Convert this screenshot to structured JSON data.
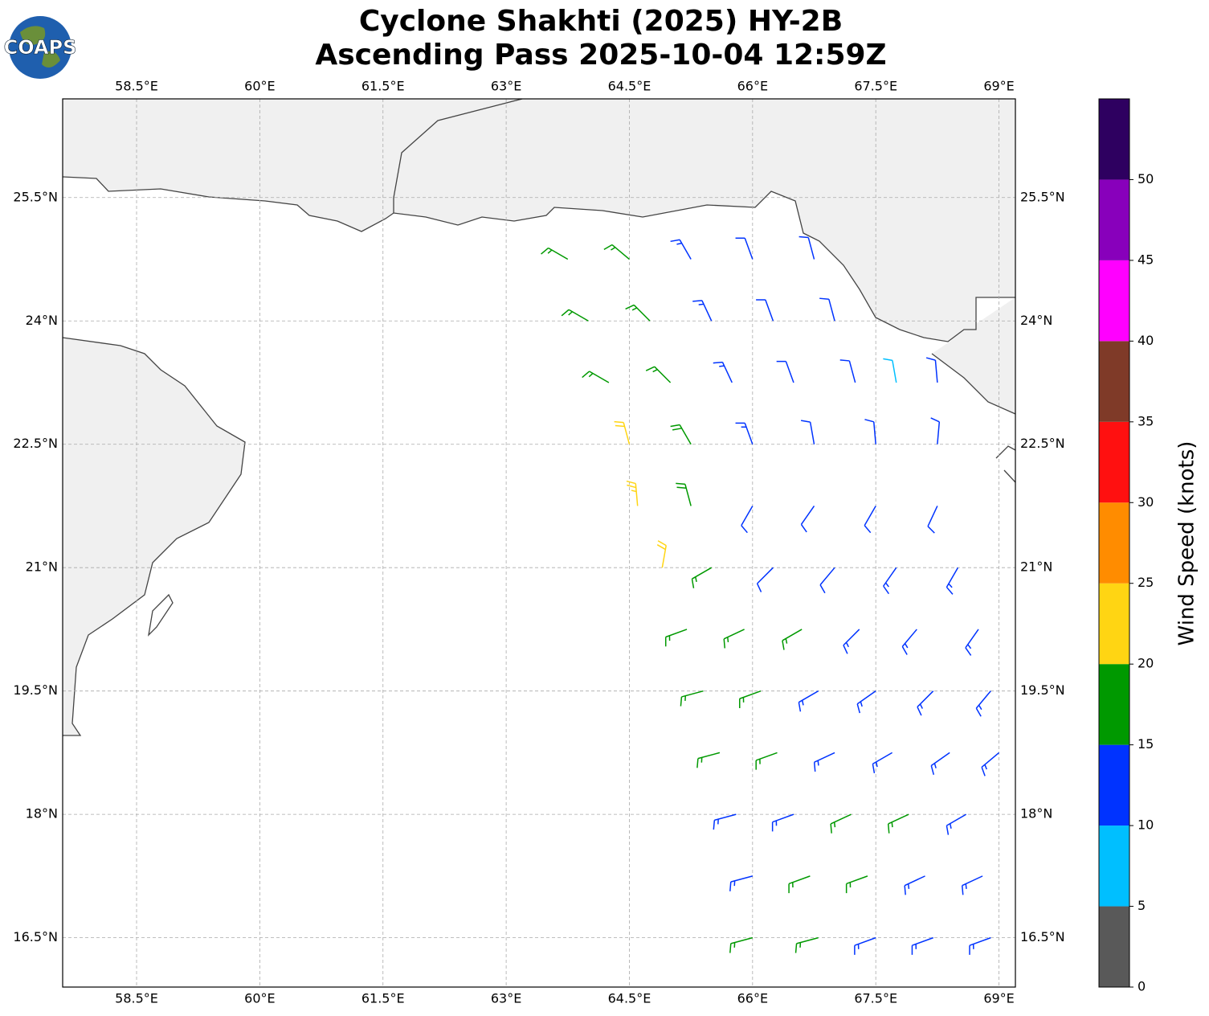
{
  "chart_data": {
    "type": "wind-barbs",
    "title": "Cyclone Shakhti (2025) HY-2B",
    "subtitle": "Ascending Pass 2025-10-04 12:59Z",
    "logo_text": "COAPS",
    "xlim": [
      57.6,
      69.2
    ],
    "ylim": [
      15.9,
      26.7
    ],
    "xticks": [
      {
        "value": 58.5,
        "label": "58.5°E"
      },
      {
        "value": 60,
        "label": "60°E"
      },
      {
        "value": 61.5,
        "label": "61.5°E"
      },
      {
        "value": 63,
        "label": "63°E"
      },
      {
        "value": 64.5,
        "label": "64.5°E"
      },
      {
        "value": 66,
        "label": "66°E"
      },
      {
        "value": 67.5,
        "label": "67.5°E"
      },
      {
        "value": 69,
        "label": "69°E"
      }
    ],
    "yticks": [
      {
        "value": 16.5,
        "label": "16.5°N"
      },
      {
        "value": 18,
        "label": "18°N"
      },
      {
        "value": 19.5,
        "label": "19.5°N"
      },
      {
        "value": 21,
        "label": "21°N"
      },
      {
        "value": 22.5,
        "label": "22.5°N"
      },
      {
        "value": 24,
        "label": "24°N"
      },
      {
        "value": 25.5,
        "label": "25.5°N"
      }
    ],
    "grid": true,
    "colorbar": {
      "label": "Wind Speed (knots)",
      "bounds": [
        0,
        5,
        10,
        15,
        20,
        25,
        30,
        35,
        40,
        45,
        50,
        55
      ],
      "colors": [
        "#595959",
        "#00bfff",
        "#0033ff",
        "#009900",
        "#ffd513",
        "#ff8c00",
        "#ff1010",
        "#7f3a28",
        "#ff00ff",
        "#8800bb",
        "#2e0060"
      ],
      "ticks": [
        0,
        5,
        10,
        15,
        20,
        25,
        30,
        35,
        40,
        45,
        50
      ]
    },
    "barbs": [
      {
        "lon": 63.75,
        "lat": 24.75,
        "speed": 17,
        "direction": 300
      },
      {
        "lon": 64.5,
        "lat": 24.75,
        "speed": 17,
        "direction": 310
      },
      {
        "lon": 65.25,
        "lat": 24.75,
        "speed": 13,
        "direction": 330
      },
      {
        "lon": 66.0,
        "lat": 24.75,
        "speed": 12,
        "direction": 340
      },
      {
        "lon": 66.75,
        "lat": 24.75,
        "speed": 12,
        "direction": 345
      },
      {
        "lon": 64.0,
        "lat": 24.0,
        "speed": 17,
        "direction": 300
      },
      {
        "lon": 64.75,
        "lat": 24.0,
        "speed": 17,
        "direction": 315
      },
      {
        "lon": 65.5,
        "lat": 24.0,
        "speed": 13,
        "direction": 335
      },
      {
        "lon": 66.25,
        "lat": 24.0,
        "speed": 12,
        "direction": 340
      },
      {
        "lon": 67.0,
        "lat": 24.0,
        "speed": 11,
        "direction": 345
      },
      {
        "lon": 64.25,
        "lat": 23.25,
        "speed": 17,
        "direction": 300
      },
      {
        "lon": 65.0,
        "lat": 23.25,
        "speed": 16,
        "direction": 315
      },
      {
        "lon": 65.75,
        "lat": 23.25,
        "speed": 13,
        "direction": 335
      },
      {
        "lon": 66.5,
        "lat": 23.25,
        "speed": 12,
        "direction": 340
      },
      {
        "lon": 67.25,
        "lat": 23.25,
        "speed": 11,
        "direction": 345
      },
      {
        "lon": 67.75,
        "lat": 23.25,
        "speed": 8,
        "direction": 350
      },
      {
        "lon": 68.25,
        "lat": 23.25,
        "speed": 11,
        "direction": 355
      },
      {
        "lon": 64.5,
        "lat": 22.5,
        "speed": 22,
        "direction": 345
      },
      {
        "lon": 65.25,
        "lat": 22.5,
        "speed": 18,
        "direction": 330
      },
      {
        "lon": 66.0,
        "lat": 22.5,
        "speed": 13,
        "direction": 340
      },
      {
        "lon": 66.75,
        "lat": 22.5,
        "speed": 11,
        "direction": 350
      },
      {
        "lon": 67.5,
        "lat": 22.5,
        "speed": 11,
        "direction": 355
      },
      {
        "lon": 68.25,
        "lat": 22.5,
        "speed": 12,
        "direction": 5
      },
      {
        "lon": 64.6,
        "lat": 21.75,
        "speed": 23,
        "direction": 355
      },
      {
        "lon": 65.25,
        "lat": 21.75,
        "speed": 18,
        "direction": 345
      },
      {
        "lon": 66.0,
        "lat": 21.75,
        "speed": 12,
        "direction": 210
      },
      {
        "lon": 66.75,
        "lat": 21.75,
        "speed": 12,
        "direction": 215
      },
      {
        "lon": 67.5,
        "lat": 21.75,
        "speed": 12,
        "direction": 210
      },
      {
        "lon": 68.25,
        "lat": 21.75,
        "speed": 12,
        "direction": 205
      },
      {
        "lon": 64.9,
        "lat": 21.0,
        "speed": 22,
        "direction": 10
      },
      {
        "lon": 65.5,
        "lat": 21.0,
        "speed": 17,
        "direction": 240
      },
      {
        "lon": 66.25,
        "lat": 21.0,
        "speed": 12,
        "direction": 225
      },
      {
        "lon": 67.0,
        "lat": 21.0,
        "speed": 12,
        "direction": 220
      },
      {
        "lon": 67.75,
        "lat": 21.0,
        "speed": 13,
        "direction": 215
      },
      {
        "lon": 68.5,
        "lat": 21.0,
        "speed": 13,
        "direction": 210
      },
      {
        "lon": 65.2,
        "lat": 20.25,
        "speed": 17,
        "direction": 250
      },
      {
        "lon": 65.9,
        "lat": 20.25,
        "speed": 16,
        "direction": 245
      },
      {
        "lon": 66.6,
        "lat": 20.25,
        "speed": 16,
        "direction": 240
      },
      {
        "lon": 67.3,
        "lat": 20.25,
        "speed": 13,
        "direction": 225
      },
      {
        "lon": 68.0,
        "lat": 20.25,
        "speed": 14,
        "direction": 220
      },
      {
        "lon": 68.75,
        "lat": 20.25,
        "speed": 14,
        "direction": 215
      },
      {
        "lon": 65.4,
        "lat": 19.5,
        "speed": 16,
        "direction": 255
      },
      {
        "lon": 66.1,
        "lat": 19.5,
        "speed": 16,
        "direction": 250
      },
      {
        "lon": 66.8,
        "lat": 19.5,
        "speed": 14,
        "direction": 240
      },
      {
        "lon": 67.5,
        "lat": 19.5,
        "speed": 14,
        "direction": 235
      },
      {
        "lon": 68.2,
        "lat": 19.5,
        "speed": 14,
        "direction": 225
      },
      {
        "lon": 68.9,
        "lat": 19.5,
        "speed": 14,
        "direction": 220
      },
      {
        "lon": 65.6,
        "lat": 18.75,
        "speed": 16,
        "direction": 255
      },
      {
        "lon": 66.3,
        "lat": 18.75,
        "speed": 15,
        "direction": 250
      },
      {
        "lon": 67.0,
        "lat": 18.75,
        "speed": 14,
        "direction": 245
      },
      {
        "lon": 67.7,
        "lat": 18.75,
        "speed": 14,
        "direction": 240
      },
      {
        "lon": 68.4,
        "lat": 18.75,
        "speed": 14,
        "direction": 235
      },
      {
        "lon": 69.0,
        "lat": 18.75,
        "speed": 14,
        "direction": 230
      },
      {
        "lon": 65.8,
        "lat": 18.0,
        "speed": 14,
        "direction": 255
      },
      {
        "lon": 66.5,
        "lat": 18.0,
        "speed": 14,
        "direction": 250
      },
      {
        "lon": 67.2,
        "lat": 18.0,
        "speed": 16,
        "direction": 245
      },
      {
        "lon": 67.9,
        "lat": 18.0,
        "speed": 16,
        "direction": 245
      },
      {
        "lon": 68.6,
        "lat": 18.0,
        "speed": 14,
        "direction": 240
      },
      {
        "lon": 66.0,
        "lat": 17.25,
        "speed": 14,
        "direction": 255
      },
      {
        "lon": 66.7,
        "lat": 17.25,
        "speed": 15,
        "direction": 250
      },
      {
        "lon": 67.4,
        "lat": 17.25,
        "speed": 16,
        "direction": 250
      },
      {
        "lon": 68.1,
        "lat": 17.25,
        "speed": 14,
        "direction": 245
      },
      {
        "lon": 68.8,
        "lat": 17.25,
        "speed": 14,
        "direction": 245
      },
      {
        "lon": 66.0,
        "lat": 16.5,
        "speed": 15,
        "direction": 255
      },
      {
        "lon": 66.8,
        "lat": 16.5,
        "speed": 16,
        "direction": 255
      },
      {
        "lon": 67.5,
        "lat": 16.5,
        "speed": 13,
        "direction": 250
      },
      {
        "lon": 68.2,
        "lat": 16.5,
        "speed": 13,
        "direction": 250
      },
      {
        "lon": 68.9,
        "lat": 16.5,
        "speed": 13,
        "direction": 250
      }
    ]
  }
}
